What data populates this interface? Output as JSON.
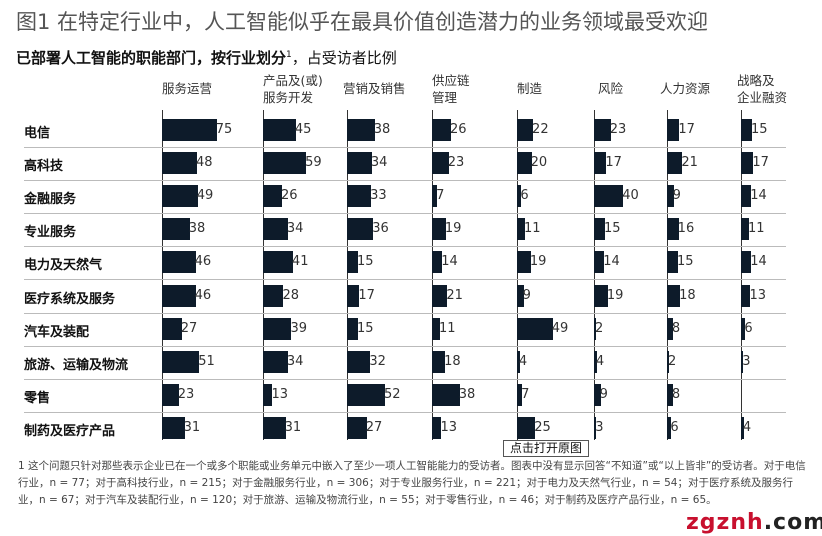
{
  "title": "图1 在特定行业中，人工智能似乎在最具价值创造潜力的业务领域最受欢迎",
  "subtitle_bold": "已部署人工智能的职能部门，按行业划分",
  "subtitle_sup": "1",
  "subtitle_rest": "，占受访者比例",
  "chart_data": {
    "type": "bar",
    "title": "已部署人工智能的职能部门，按行业划分，占受访者比例",
    "columns": [
      {
        "line1": "服务运营",
        "line2": ""
      },
      {
        "line1": "产品及(或)",
        "line2": "服务开发"
      },
      {
        "line1": "营销及销售",
        "line2": ""
      },
      {
        "line1": "供应链",
        "line2": "管理"
      },
      {
        "line1": "制造",
        "line2": ""
      },
      {
        "line1": "风险",
        "line2": ""
      },
      {
        "line1": "人力资源",
        "line2": ""
      },
      {
        "line1": "战略及",
        "line2": "企业融资"
      }
    ],
    "rows": [
      {
        "industry": "电信",
        "values": [
          75,
          45,
          38,
          26,
          22,
          23,
          17,
          15
        ]
      },
      {
        "industry": "高科技",
        "values": [
          48,
          59,
          34,
          23,
          20,
          17,
          21,
          17
        ]
      },
      {
        "industry": "金融服务",
        "values": [
          49,
          26,
          33,
          7,
          6,
          40,
          9,
          14
        ]
      },
      {
        "industry": "专业服务",
        "values": [
          38,
          34,
          36,
          19,
          11,
          15,
          16,
          11
        ]
      },
      {
        "industry": "电力及天然气",
        "values": [
          46,
          41,
          15,
          14,
          19,
          14,
          15,
          14
        ]
      },
      {
        "industry": "医疗系统及服务",
        "values": [
          46,
          28,
          17,
          21,
          9,
          19,
          18,
          13
        ]
      },
      {
        "industry": "汽车及装配",
        "values": [
          27,
          39,
          15,
          11,
          49,
          2,
          8,
          6
        ]
      },
      {
        "industry": "旅游、运输及物流",
        "values": [
          51,
          34,
          32,
          18,
          4,
          4,
          2,
          3
        ]
      },
      {
        "industry": "零售",
        "values": [
          23,
          13,
          52,
          38,
          7,
          9,
          8,
          null
        ]
      },
      {
        "industry": "制药及医疗产品",
        "values": [
          31,
          31,
          27,
          13,
          25,
          3,
          6,
          4
        ]
      }
    ],
    "unit": "%",
    "bar_color": "#0d1b2a"
  },
  "footnote": "1 这个问题只针对那些表示企业已在一个或多个职能或业务单元中嵌入了至少一项人工智能能力的受访者。图表中没有显示回答“不知道”或“以上皆非”的受访者。对于电信行业，n = 77；对于高科技行业，n = 215；对于金融服务行业，n = 306；对于专业服务行业，n = 221；对于电力及天然气行业，n = 54；对于医疗系统及服务行业，n = 67；对于汽车及装配行业，n = 120；对于旅游、运输及物流行业，n = 55；对于零售行业，n = 46；对于制药及医疗产品行业，n = 65。",
  "tooltip": "点击打开原图",
  "watermark": {
    "text": "zgznh.com",
    "part1": "zgznh",
    "part2": ".com"
  }
}
